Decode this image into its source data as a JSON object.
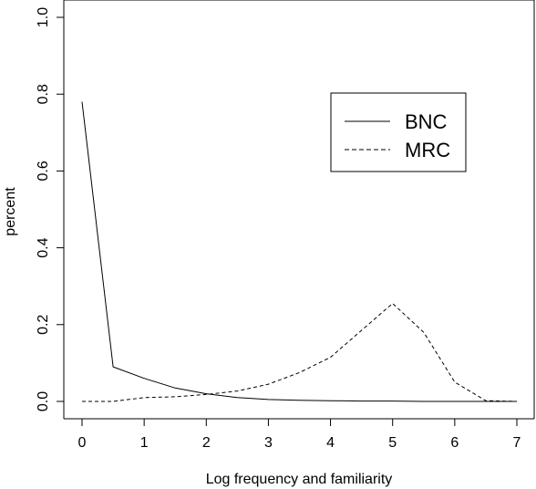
{
  "chart_data": {
    "type": "line",
    "title": "",
    "xlabel": "Log frequency and familiarity",
    "ylabel": "percent",
    "xlim": [
      0,
      7
    ],
    "ylim": [
      0,
      1.0
    ],
    "xticks": [
      "0",
      "1",
      "2",
      "3",
      "4",
      "5",
      "6",
      "7"
    ],
    "yticks": [
      "0.0",
      "0.2",
      "0.4",
      "0.6",
      "0.8",
      "1.0"
    ],
    "grid": false,
    "legend_position": "top-right",
    "series": [
      {
        "name": "BNC",
        "line_style": "solid",
        "color": "#000000",
        "x": [
          0,
          0.5,
          1.0,
          1.5,
          2.0,
          2.5,
          3.0,
          3.5,
          4.0,
          4.5,
          5.0,
          5.5,
          6.0,
          6.5,
          7.0
        ],
        "y": [
          0.78,
          0.09,
          0.06,
          0.035,
          0.02,
          0.01,
          0.005,
          0.003,
          0.002,
          0.001,
          0.001,
          0.0,
          0.0,
          0.0,
          0.0
        ]
      },
      {
        "name": "MRC",
        "line_style": "dashed",
        "color": "#000000",
        "x": [
          0,
          0.5,
          1.0,
          1.5,
          2.0,
          2.5,
          3.0,
          3.5,
          4.0,
          4.5,
          5.0,
          5.5,
          6.0,
          6.5,
          7.0
        ],
        "y": [
          0.0,
          0.0,
          0.01,
          0.012,
          0.018,
          0.027,
          0.045,
          0.075,
          0.115,
          0.185,
          0.255,
          0.18,
          0.05,
          0.002,
          0.0
        ]
      }
    ]
  }
}
